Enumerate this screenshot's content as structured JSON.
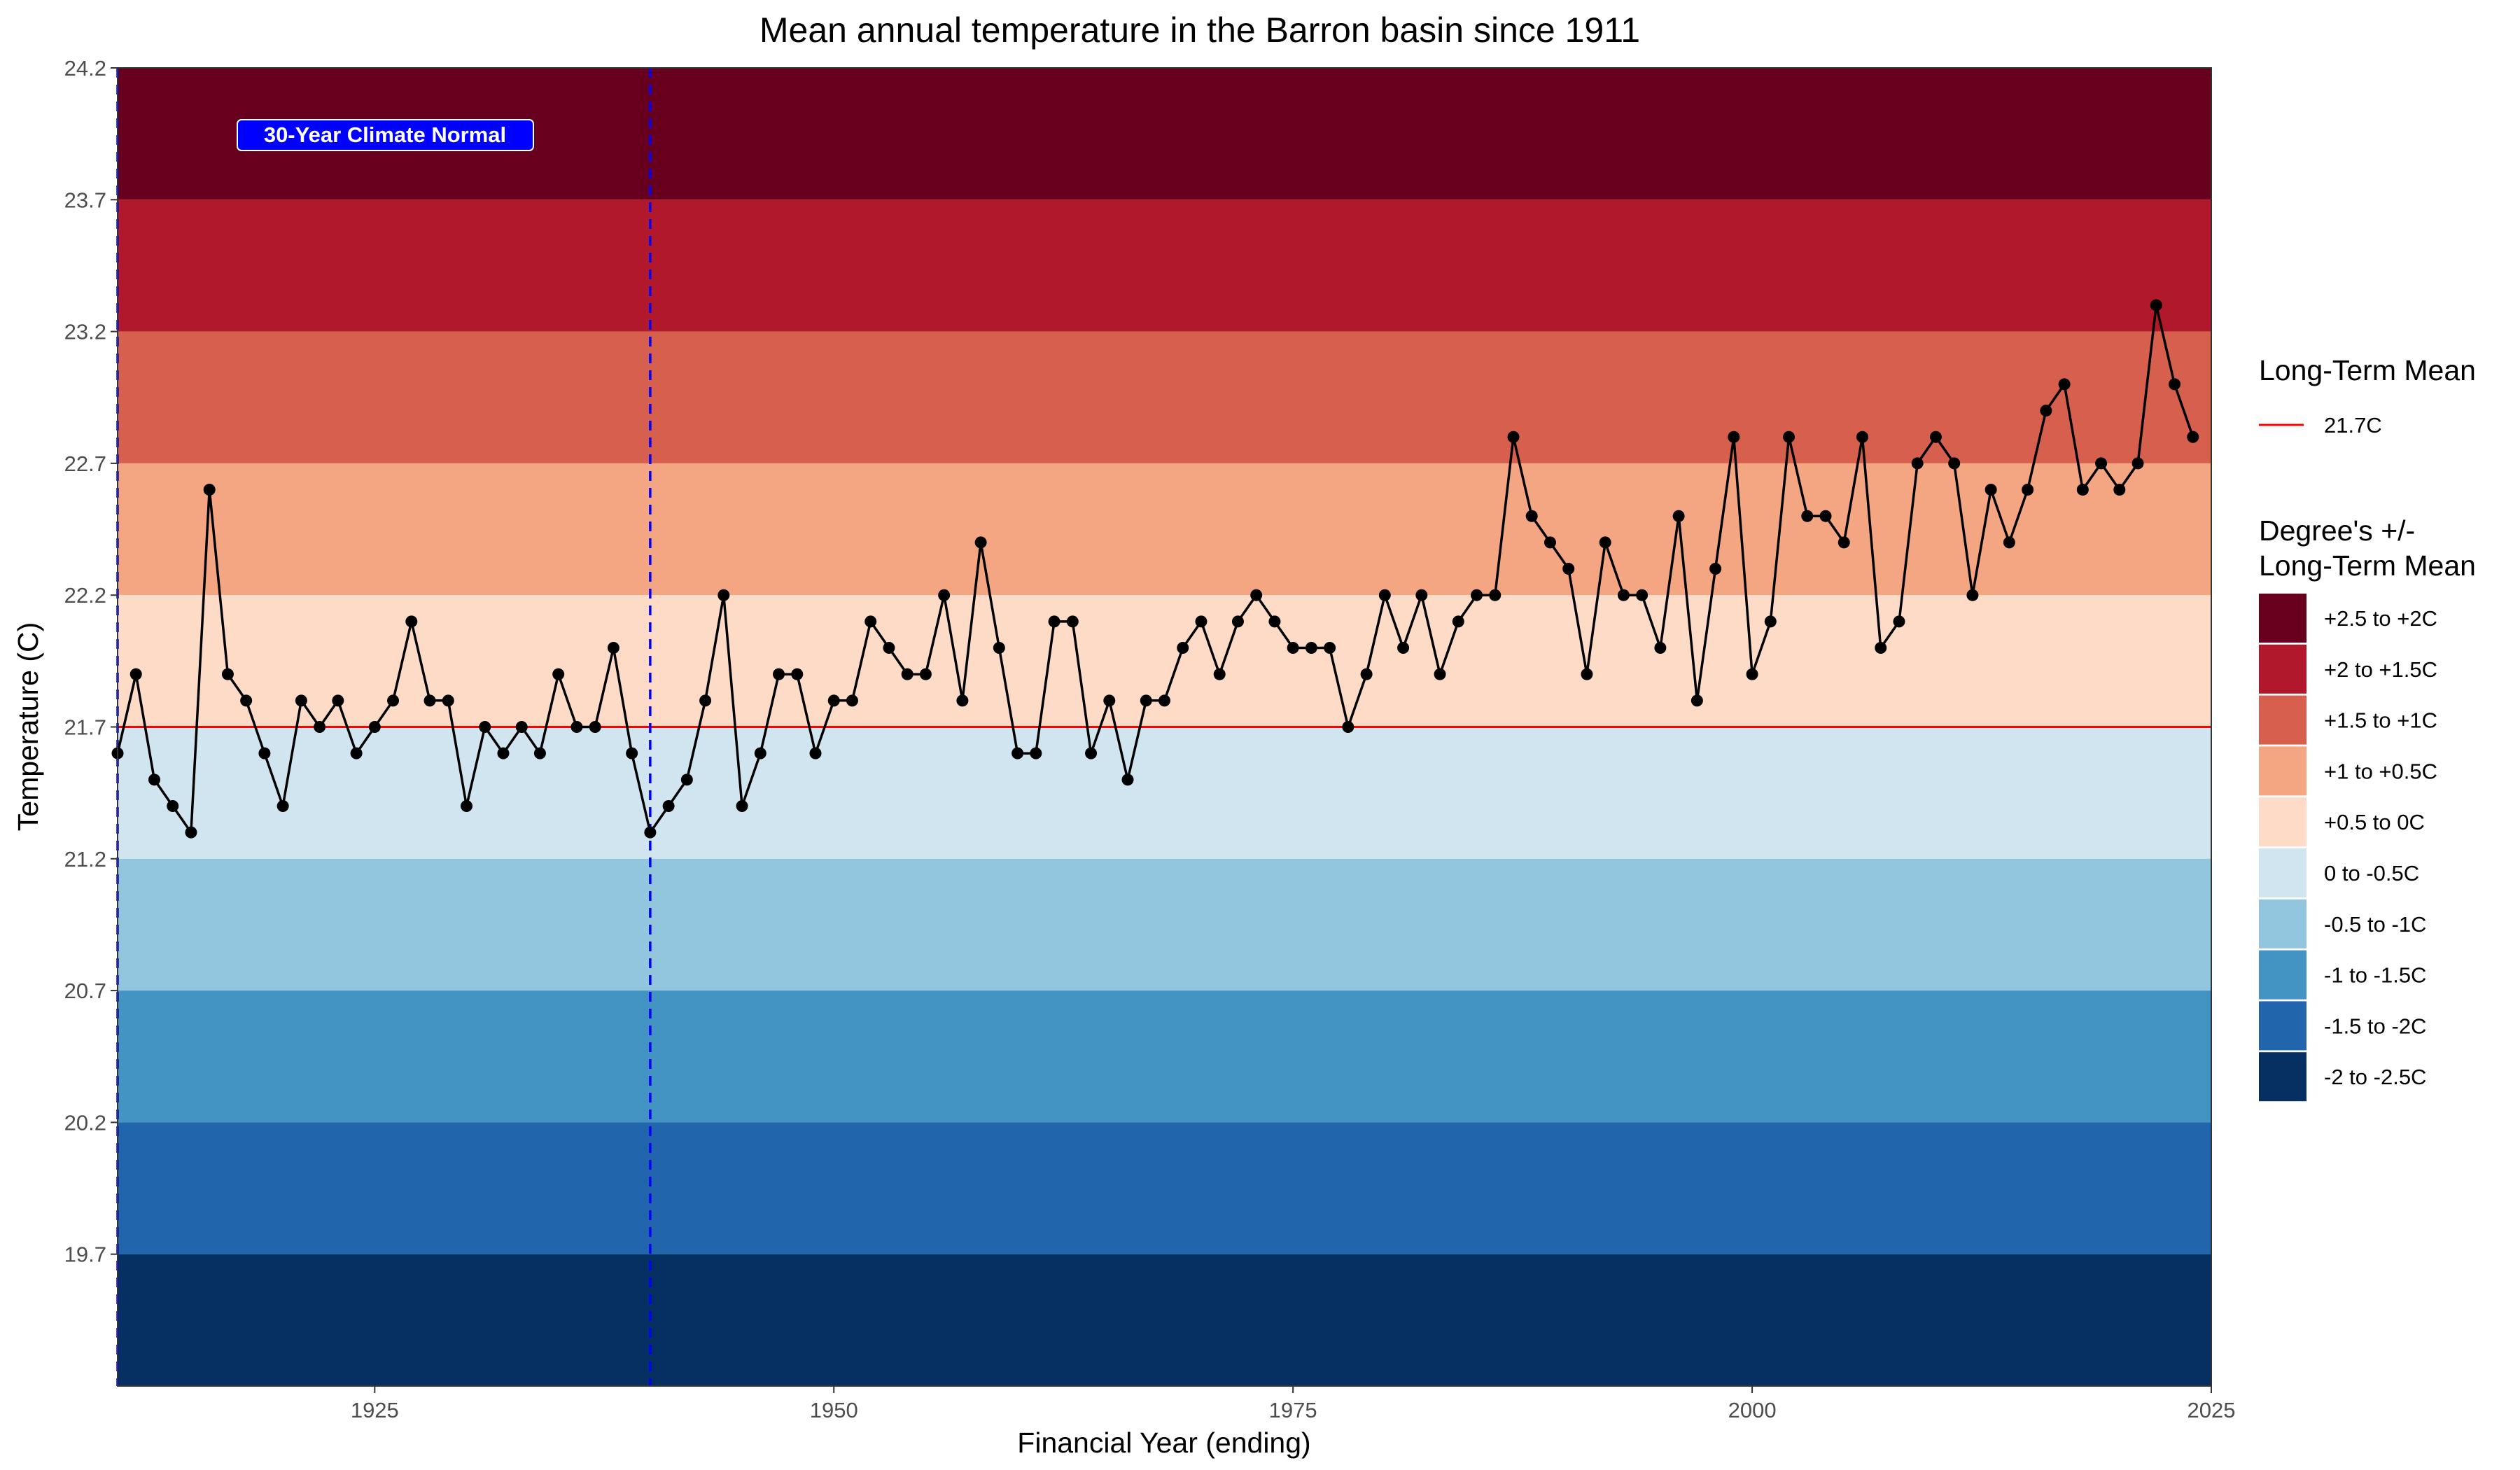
{
  "chart_data": {
    "type": "line",
    "title": "Mean annual temperature in the Barron basin since 1911",
    "xlabel": "Financial Year (ending)",
    "ylabel": "Temperature (C)",
    "xlim": [
      1911,
      2025
    ],
    "ylim": [
      19.2,
      24.2
    ],
    "x_ticks": [
      1925,
      1950,
      1975,
      2000,
      2025
    ],
    "y_ticks": [
      19.7,
      20.2,
      20.7,
      21.2,
      21.7,
      22.2,
      22.7,
      23.2,
      23.7,
      24.2
    ],
    "long_term_mean": 21.7,
    "mean_line_color": "#ff0000",
    "climate_normal": {
      "label": "30-Year Climate Normal",
      "start": 1911,
      "end": 1940,
      "color": "#0000ff"
    },
    "bands": [
      {
        "label": "+2.5 to +2C",
        "low": 23.7,
        "high": 24.2,
        "color": "#67001f"
      },
      {
        "label": "+2 to +1.5C",
        "low": 23.2,
        "high": 23.7,
        "color": "#b2182b"
      },
      {
        "label": "+1.5 to +1C",
        "low": 22.7,
        "high": 23.2,
        "color": "#d6604d"
      },
      {
        "label": "+1 to +0.5C",
        "low": 22.2,
        "high": 22.7,
        "color": "#f4a582"
      },
      {
        "label": "+0.5 to 0C",
        "low": 21.7,
        "high": 22.2,
        "color": "#fddbc7"
      },
      {
        "label": "0 to -0.5C",
        "low": 21.2,
        "high": 21.7,
        "color": "#d1e5f0"
      },
      {
        "label": "-0.5 to -1C",
        "low": 20.7,
        "high": 21.2,
        "color": "#92c5de"
      },
      {
        "label": "-1 to -1.5C",
        "low": 20.2,
        "high": 20.7,
        "color": "#4393c3"
      },
      {
        "label": "-1.5 to -2C",
        "low": 19.7,
        "high": 20.2,
        "color": "#2166ac"
      },
      {
        "label": "-2 to -2.5C",
        "low": 19.2,
        "high": 19.7,
        "color": "#053061"
      }
    ],
    "series": [
      {
        "x": [
          1911,
          1912,
          1913,
          1914,
          1915,
          1916,
          1917,
          1918,
          1919,
          1920,
          1921,
          1922,
          1923,
          1924,
          1925,
          1926,
          1927,
          1928,
          1929,
          1930,
          1931,
          1932,
          1933,
          1934,
          1935,
          1936,
          1937,
          1938,
          1939,
          1940,
          1941,
          1942,
          1943,
          1944,
          1945,
          1946,
          1947,
          1948,
          1949,
          1950,
          1951,
          1952,
          1953,
          1954,
          1955,
          1956,
          1957,
          1958,
          1959,
          1960,
          1961,
          1962,
          1963,
          1964,
          1965,
          1966,
          1967,
          1968,
          1969,
          1970,
          1971,
          1972,
          1973,
          1974,
          1975,
          1976,
          1977,
          1978,
          1979,
          1980,
          1981,
          1982,
          1983,
          1984,
          1985,
          1986,
          1987,
          1988,
          1989,
          1990,
          1991,
          1992,
          1993,
          1994,
          1995,
          1996,
          1997,
          1998,
          1999,
          2000,
          2001,
          2002,
          2003,
          2004,
          2005,
          2006,
          2007,
          2008,
          2009,
          2010,
          2011,
          2012,
          2013,
          2014,
          2015,
          2016,
          2017,
          2018,
          2019,
          2020,
          2021,
          2022,
          2023,
          2024
        ],
        "values": [
          21.6,
          21.9,
          21.5,
          21.4,
          21.3,
          22.6,
          21.9,
          21.8,
          21.6,
          21.4,
          21.8,
          21.7,
          21.8,
          21.6,
          21.7,
          21.8,
          22.1,
          21.8,
          21.8,
          21.4,
          21.7,
          21.6,
          21.7,
          21.6,
          21.9,
          21.7,
          21.7,
          22.0,
          21.6,
          21.3,
          21.4,
          21.5,
          21.8,
          22.2,
          21.4,
          21.6,
          21.9,
          21.9,
          21.6,
          21.8,
          21.8,
          22.1,
          22.0,
          21.9,
          21.9,
          22.2,
          21.8,
          22.4,
          22.0,
          21.6,
          21.6,
          22.1,
          22.1,
          21.6,
          21.8,
          21.5,
          21.8,
          21.8,
          22.0,
          22.1,
          21.9,
          22.1,
          22.2,
          22.1,
          22.0,
          22.0,
          22.0,
          21.7,
          21.9,
          22.2,
          22.0,
          22.2,
          21.9,
          22.1,
          22.2,
          22.2,
          22.8,
          22.5,
          22.4,
          22.3,
          21.9,
          22.4,
          22.2,
          22.2,
          22.0,
          22.5,
          21.8,
          22.3,
          22.8,
          21.9,
          22.1,
          22.8,
          22.5,
          22.5,
          22.4,
          22.8,
          22.0,
          22.1,
          22.7,
          22.8,
          22.7,
          22.2,
          22.6,
          22.4,
          22.6,
          22.9,
          23.0,
          22.6,
          22.7,
          22.6,
          22.7,
          23.3,
          23.0,
          22.8
        ]
      }
    ],
    "legend": {
      "mean_title": "Long-Term Mean",
      "mean_label": "21.7C",
      "bands_title_line1": "Degree's +/-",
      "bands_title_line2": "Long-Term Mean"
    }
  }
}
